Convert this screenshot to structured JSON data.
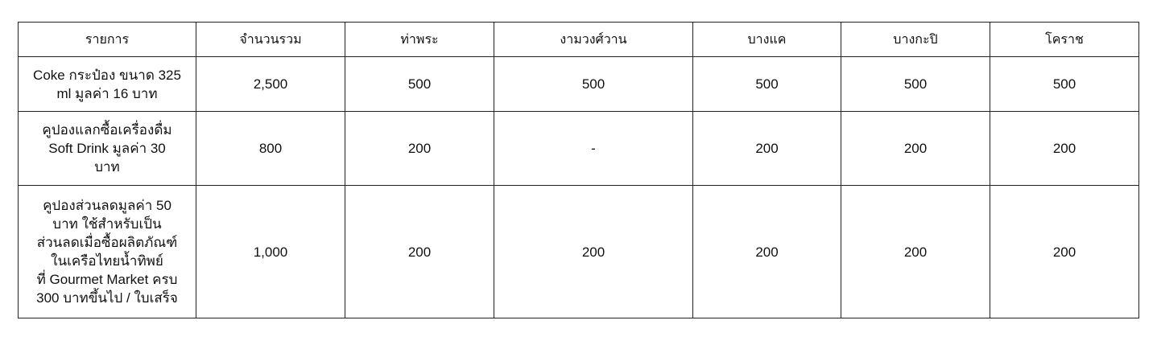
{
  "table": {
    "headers": [
      "รายการ",
      "จำนวนรวม",
      "ท่าพระ",
      "งามวงศ์วาน",
      "บางแค",
      "บางกะปิ",
      "โคราช"
    ],
    "rows": [
      {
        "item_lines": [
          "Coke กระป๋อง ขนาด 325",
          "ml มูลค่า 16 บาท"
        ],
        "values": [
          "2,500",
          "500",
          "500",
          "500",
          "500",
          "500"
        ]
      },
      {
        "item_lines": [
          "คูปองแลกซื้อเครื่องดื่ม",
          "Soft Drink มูลค่า 30",
          "บาท"
        ],
        "values": [
          "800",
          "200",
          "-",
          "200",
          "200",
          "200"
        ]
      },
      {
        "item_lines": [
          "คูปองส่วนลดมูลค่า 50",
          "บาท ใช้สำหรับเป็น",
          "ส่วนลดเมื่อซื้อผลิตภัณฑ์",
          "ในเครือไทยน้ำทิพย์",
          "ที่ Gourmet Market ครบ",
          "300 บาทขึ้นไป / ใบเสร็จ"
        ],
        "values": [
          "1,000",
          "200",
          "200",
          "200",
          "200",
          "200"
        ]
      }
    ]
  }
}
